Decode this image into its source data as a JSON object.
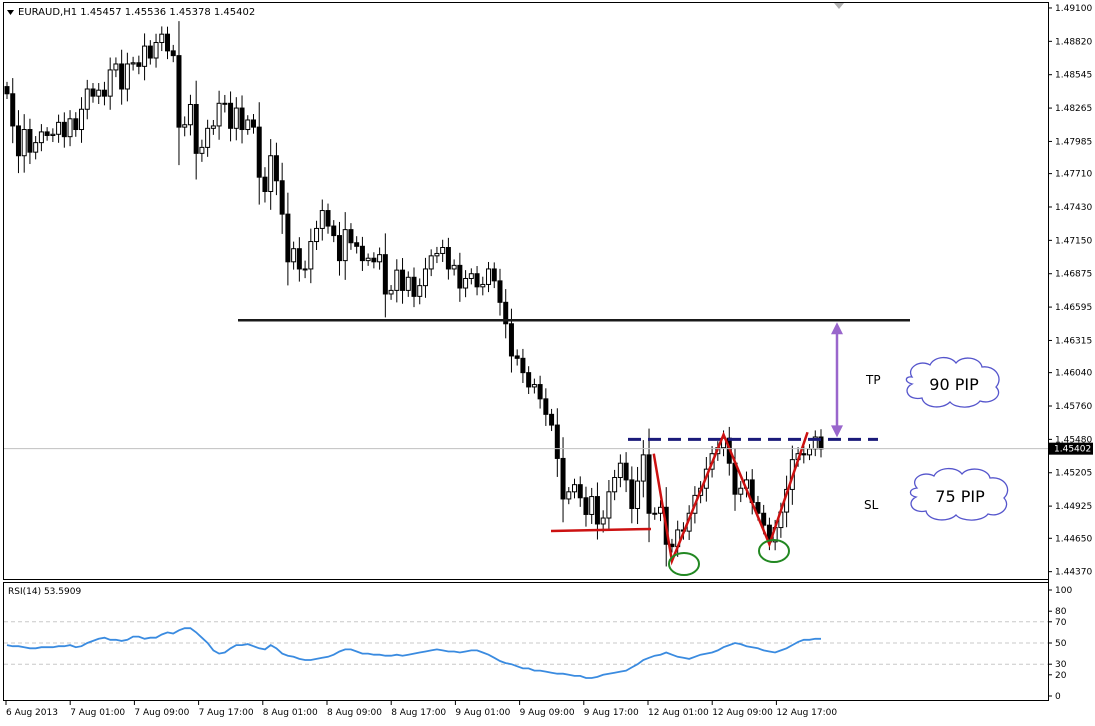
{
  "window": {
    "header": "EURAUD,H1  1.45457 1.45536 1.45378 1.45402"
  },
  "colors": {
    "background": "#ffffff",
    "axis": "#000000",
    "resistance_line": "#1a1a1a",
    "neckline_dash": "#1a1a7a",
    "pattern_line": "#cc1111",
    "support_line": "#cc1111",
    "target_arrow": "#9966cc",
    "bottom_circle": "#228822",
    "cloud_border": "#5555cc",
    "rsi_line": "#3a8be0",
    "rsi_level": "#c8c8c8"
  },
  "chart_data": [
    {
      "type": "candlestick",
      "symbol": "EURAUD",
      "timeframe": "H1",
      "header_values": {
        "open": 1.45457,
        "high": 1.45536,
        "low": 1.45378,
        "close": 1.45402
      },
      "y_ticks": [
        1.491,
        1.4882,
        1.4854,
        1.4826,
        1.4798,
        1.4771,
        1.4743,
        1.4715,
        1.4687,
        1.4659,
        1.4631,
        1.4604,
        1.4576,
        1.4548,
        1.452,
        1.4492,
        1.4465,
        1.4437
      ],
      "y_tick_labels": [
        "1.49100",
        "1.48820",
        "1.48545",
        "1.48265",
        "1.47985",
        "1.47710",
        "1.47430",
        "1.47150",
        "1.46875",
        "1.46595",
        "1.46315",
        "1.46040",
        "1.45760",
        "1.45480",
        "1.45205",
        "1.44925",
        "1.44650",
        "1.44370"
      ],
      "ylim": [
        1.443,
        1.4915
      ],
      "current_price": 1.45402,
      "current_price_label": "1.45402",
      "x_tick_labels": [
        "6 Aug 2013",
        "7 Aug 01:00",
        "7 Aug 09:00",
        "7 Aug 17:00",
        "8 Aug 01:00",
        "8 Aug 09:00",
        "8 Aug 17:00",
        "9 Aug 01:00",
        "9 Aug 09:00",
        "9 Aug 17:00",
        "12 Aug 01:00",
        "12 Aug 09:00",
        "12 Aug 17:00"
      ],
      "closes": [
        1.4838,
        1.4811,
        1.4786,
        1.4808,
        1.4789,
        1.4797,
        1.4806,
        1.4803,
        1.4804,
        1.4814,
        1.4802,
        1.4817,
        1.4808,
        1.4825,
        1.4842,
        1.4836,
        1.4841,
        1.4836,
        1.4858,
        1.4863,
        1.4842,
        1.4863,
        1.4864,
        1.4861,
        1.4878,
        1.4868,
        1.4881,
        1.4888,
        1.4874,
        1.487,
        1.481,
        1.4812,
        1.4829,
        1.4788,
        1.4793,
        1.4809,
        1.4811,
        1.483,
        1.483,
        1.4809,
        1.4826,
        1.4808,
        1.4816,
        1.481,
        1.4768,
        1.4756,
        1.4786,
        1.4765,
        1.4737,
        1.4697,
        1.4708,
        1.4691,
        1.4691,
        1.4714,
        1.4725,
        1.474,
        1.4727,
        1.4719,
        1.4698,
        1.4724,
        1.4713,
        1.471,
        1.4698,
        1.47,
        1.4697,
        1.4703,
        1.467,
        1.4673,
        1.469,
        1.4673,
        1.4684,
        1.4668,
        1.4677,
        1.4691,
        1.4702,
        1.4704,
        1.4709,
        1.4691,
        1.4694,
        1.4675,
        1.4683,
        1.4687,
        1.4676,
        1.4678,
        1.4691,
        1.4681,
        1.4663,
        1.4645,
        1.4618,
        1.4616,
        1.4604,
        1.4592,
        1.4594,
        1.4582,
        1.4569,
        1.456,
        1.4532,
        1.4498,
        1.4504,
        1.451,
        1.4499,
        1.4485,
        1.45,
        1.4477,
        1.4482,
        1.4504,
        1.4516,
        1.4528,
        1.4514,
        1.449,
        1.4513,
        1.4535,
        1.4486,
        1.4486,
        1.4491,
        1.446,
        1.4458,
        1.4472,
        1.4471,
        1.4486,
        1.4501,
        1.4507,
        1.4523,
        1.4536,
        1.4541,
        1.4549,
        1.4528,
        1.4502,
        1.4507,
        1.4514,
        1.4495,
        1.4486,
        1.4476,
        1.4462,
        1.4474,
        1.4487,
        1.4506,
        1.4531,
        1.4536,
        1.4535,
        1.454,
        1.455,
        1.454
      ],
      "annotations": {
        "tp_label": "TP",
        "sl_label": "SL",
        "tp_cloud": "90 PIP",
        "sl_cloud": "75 PIP",
        "resistance_price": 1.4648,
        "neckline_price": 1.4548,
        "support_price": 1.4472,
        "pattern": "double bottom (W)"
      }
    },
    {
      "type": "line",
      "name": "RSI(14)",
      "title": "RSI(14) 53.5909",
      "ylim": [
        0,
        100
      ],
      "y_ticks": [
        0,
        20,
        30,
        50,
        70,
        80,
        100
      ],
      "levels": [
        30,
        50,
        70
      ],
      "values": [
        48,
        47,
        47,
        46,
        45,
        45,
        46,
        46,
        46,
        47,
        47,
        48,
        46,
        47,
        50,
        52,
        54,
        55,
        53,
        53,
        52,
        53,
        56,
        56,
        54,
        55,
        55,
        58,
        60,
        59,
        62,
        64,
        64,
        60,
        55,
        50,
        43,
        40,
        41,
        45,
        48,
        48,
        49,
        47,
        45,
        44,
        48,
        45,
        40,
        38,
        37,
        35,
        34,
        34,
        35,
        36,
        37,
        39,
        42,
        44,
        44,
        42,
        40,
        40,
        39,
        39,
        38,
        38,
        39,
        38,
        39,
        40,
        41,
        42,
        43,
        44,
        43,
        42,
        42,
        41,
        42,
        43,
        43,
        41,
        39,
        36,
        33,
        31,
        30,
        28,
        26,
        26,
        24,
        24,
        23,
        22,
        21,
        21,
        20,
        19,
        19,
        17,
        17,
        18,
        20,
        21,
        22,
        23,
        24,
        27,
        30,
        34,
        36,
        38,
        39,
        41,
        39,
        37,
        36,
        35,
        37,
        39,
        40,
        41,
        43,
        46,
        48,
        50,
        49,
        47,
        46,
        45,
        43,
        42,
        41,
        43,
        45,
        48,
        51,
        53,
        53,
        54,
        54
      ]
    }
  ]
}
